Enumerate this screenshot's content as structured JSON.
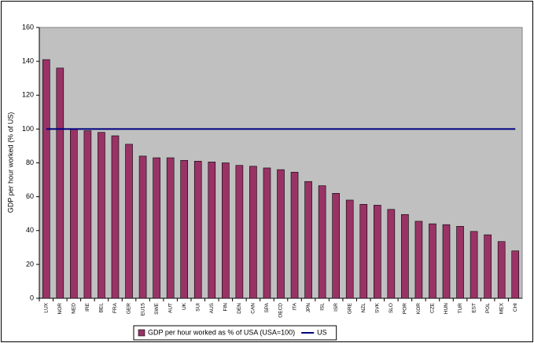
{
  "chart_data": {
    "type": "bar",
    "y_axis_label": "GDP per hour worked (% of US)",
    "categories": [
      "LUX",
      "NOR",
      "NED",
      "IRE",
      "BEL",
      "FRA",
      "GER",
      "EU15",
      "SWE",
      "AUT",
      "UK",
      "SUI",
      "AUS",
      "FIN",
      "DEN",
      "CAN",
      "SPA",
      "OECD",
      "ITA",
      "JPN",
      "ISL",
      "ISR",
      "GRE",
      "NZL",
      "SVK",
      "SLO",
      "POR",
      "KOR",
      "CZE",
      "HUN",
      "TUR",
      "EST",
      "POL",
      "MEX",
      "CHI"
    ],
    "series": [
      {
        "name": "GDP per hour worked as % of USA (USA=100)",
        "type": "bar",
        "color": "#993366",
        "values": [
          141,
          136,
          100,
          99,
          98,
          96,
          91,
          84,
          83,
          83,
          81.5,
          81,
          80.5,
          80,
          78.5,
          78,
          77,
          76,
          74.5,
          69,
          66.5,
          62,
          58,
          55.5,
          55,
          52.5,
          49.5,
          45.5,
          44,
          43.5,
          42.5,
          39.5,
          37.5,
          33.5,
          28
        ]
      },
      {
        "name": "US",
        "type": "line",
        "color": "#000080",
        "values": [
          100,
          100,
          100,
          100,
          100,
          100,
          100,
          100,
          100,
          100,
          100,
          100,
          100,
          100,
          100,
          100,
          100,
          100,
          100,
          100,
          100,
          100,
          100,
          100,
          100,
          100,
          100,
          100,
          100,
          100,
          100,
          100,
          100,
          100,
          100
        ]
      }
    ],
    "ylim": [
      0,
      160
    ],
    "yticks": [
      0,
      20,
      40,
      60,
      80,
      100,
      120,
      140,
      160
    ],
    "background": "#c0c0c0",
    "legend": "bottom"
  }
}
